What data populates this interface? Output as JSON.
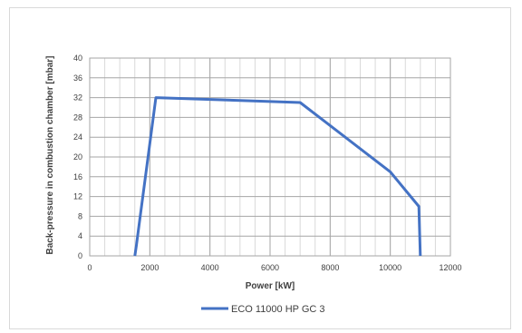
{
  "chart_data": {
    "type": "line",
    "title": "",
    "xlabel": "Power [kW]",
    "ylabel": "Back-pressure in combustion chamber [mbar]",
    "xlim": [
      0,
      12000
    ],
    "ylim": [
      0,
      40
    ],
    "xticks": [
      0,
      2000,
      4000,
      6000,
      8000,
      10000,
      12000
    ],
    "yticks": [
      0,
      4,
      8,
      12,
      16,
      20,
      24,
      28,
      32,
      36,
      40
    ],
    "grid": true,
    "legend": "bottom",
    "series": [
      {
        "name": "ECO 11000 HP GC 3",
        "color": "#4472c4",
        "points": [
          [
            1500,
            0
          ],
          [
            1550,
            2
          ],
          [
            2200,
            32
          ],
          [
            7000,
            31
          ],
          [
            10000,
            17
          ],
          [
            10950,
            10
          ],
          [
            11000,
            0
          ]
        ]
      }
    ]
  }
}
